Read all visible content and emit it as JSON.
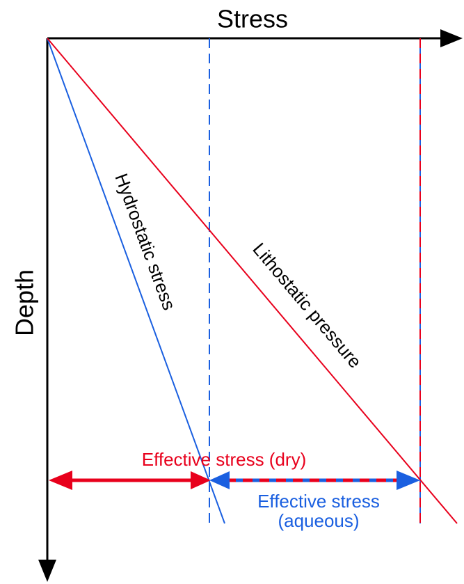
{
  "labels": {
    "x_axis": "Stress",
    "y_axis": "Depth",
    "hydrostatic": "Hydrostatic stress",
    "lithostatic": "Lithostatic pressure",
    "effective_dry": "Effective stress (dry)",
    "effective_aqueous": [
      "Effective stress",
      "(aqueous)"
    ]
  }
}
